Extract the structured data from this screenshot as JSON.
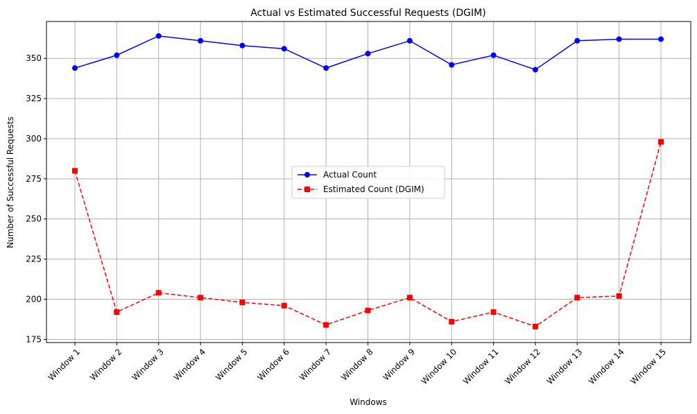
{
  "chart_data": {
    "type": "line",
    "title": "Actual vs Estimated Successful Requests (DGIM)",
    "xlabel": "Windows",
    "ylabel": "Number of Successful Requests",
    "categories": [
      "Window 1",
      "Window 2",
      "Window 3",
      "Window 4",
      "Window 5",
      "Window 6",
      "Window 7",
      "Window 8",
      "Window 9",
      "Window 10",
      "Window 11",
      "Window 12",
      "Window 13",
      "Window 14",
      "Window 15"
    ],
    "ylim": [
      173,
      373
    ],
    "yticks": [
      175,
      200,
      225,
      250,
      275,
      300,
      325,
      350
    ],
    "grid": true,
    "legend_position": "center",
    "series": [
      {
        "name": "Actual Count",
        "color": "#0000ff",
        "line_style": "solid",
        "marker": "circle",
        "values": [
          344,
          352,
          364,
          361,
          358,
          356,
          344,
          353,
          361,
          346,
          352,
          343,
          361,
          362,
          362
        ]
      },
      {
        "name": "Estimated Count (DGIM)",
        "color": "#ff0000",
        "line_style": "dashed",
        "marker": "square",
        "values": [
          280,
          192,
          204,
          201,
          198,
          196,
          184,
          193,
          201,
          186,
          192,
          183,
          201,
          202,
          298
        ]
      }
    ]
  }
}
